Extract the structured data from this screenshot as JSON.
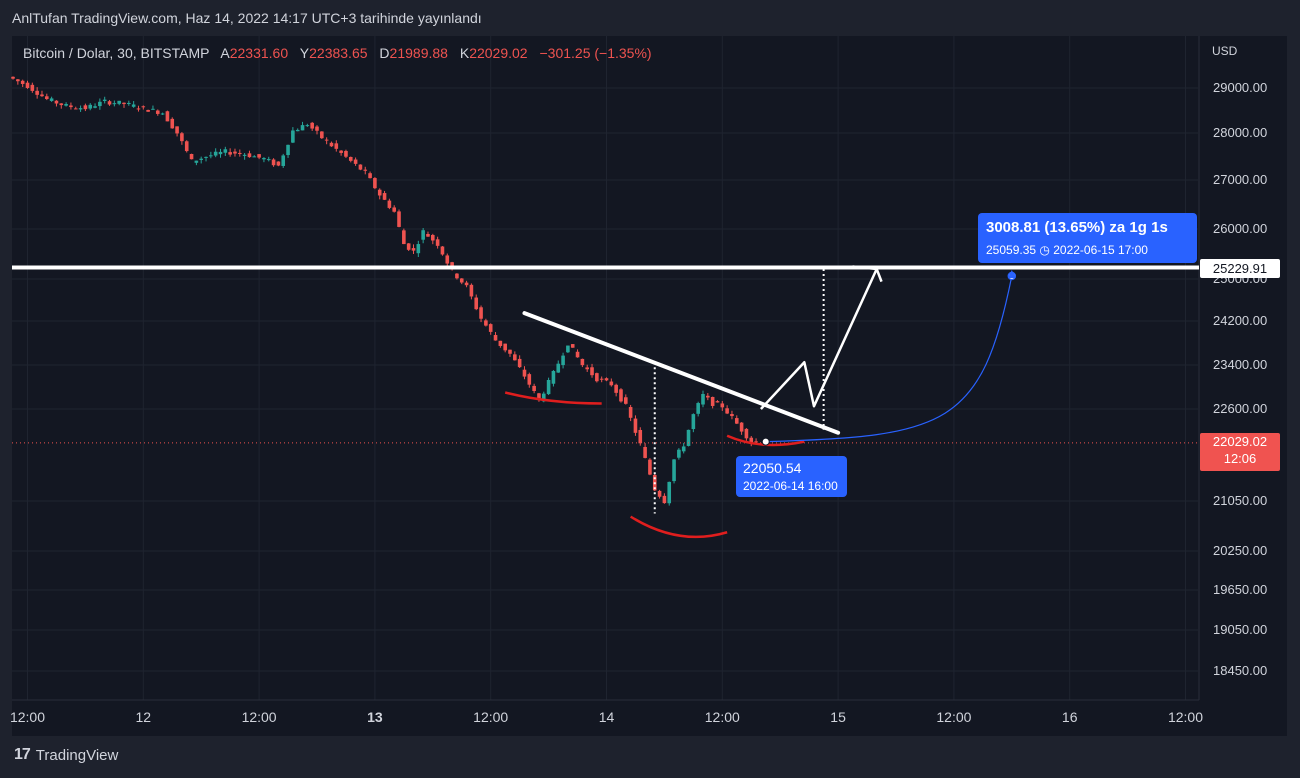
{
  "header": {
    "publish_line": "AnlTufan TradingView.com, Haz 14, 2022 14:17 UTC+3 tarihinde yayınlandı"
  },
  "legend": {
    "symbol": "Bitcoin / Dolar, 30, BITSTAMP",
    "open_key": "A",
    "open": "22331.60",
    "high_key": "Y",
    "high": "22383.65",
    "low_key": "D",
    "low": "21989.88",
    "close_key": "K",
    "close": "22029.02",
    "change": "−301.25 (−1.35%)"
  },
  "axis": {
    "currency": "USD"
  },
  "colors": {
    "up": "#26a69a",
    "down": "#ef5350",
    "bg": "#131722",
    "accent": "#2962ff",
    "annotation_red": "#e01e1e"
  },
  "chart_data": {
    "type": "candlestick",
    "ylim": [
      18150,
      29650
    ],
    "y_ticks": [
      "29000.00",
      "28000.00",
      "27000.00",
      "26000.00",
      "25000.00",
      "24200.00",
      "23400.00",
      "22600.00",
      "21050.00",
      "20250.00",
      "19650.00",
      "19050.00",
      "18450.00"
    ],
    "y_tick_values": [
      29000,
      28000,
      27000,
      26000,
      25000,
      24200,
      23400,
      22600,
      21050,
      20250,
      19650,
      19050,
      18450
    ],
    "x_ticks": [
      "12:00",
      "12",
      "12:00",
      "13",
      "12:00",
      "14",
      "12:00",
      "15",
      "12:00",
      "16",
      "12:00"
    ],
    "x_tick_hours": [
      12,
      24,
      36,
      48,
      60,
      72,
      84,
      96,
      108,
      120,
      132
    ],
    "x_bold": [
      false,
      false,
      false,
      true,
      false,
      false,
      false,
      false,
      false,
      false,
      false
    ],
    "price_path": [
      [
        10.5,
        29250
      ],
      [
        12.5,
        29050
      ],
      [
        14.5,
        28750
      ],
      [
        16.5,
        28600
      ],
      [
        18.5,
        28550
      ],
      [
        20.5,
        28700
      ],
      [
        22.5,
        28650
      ],
      [
        24.5,
        28550
      ],
      [
        26.5,
        28450
      ],
      [
        28,
        28000
      ],
      [
        29.5,
        27400
      ],
      [
        31,
        27500
      ],
      [
        33,
        27600
      ],
      [
        35,
        27550
      ],
      [
        37,
        27450
      ],
      [
        38.5,
        27300
      ],
      [
        40,
        28050
      ],
      [
        41.5,
        28200
      ],
      [
        43,
        27900
      ],
      [
        44.5,
        27650
      ],
      [
        46,
        27400
      ],
      [
        47.5,
        27150
      ],
      [
        49,
        26700
      ],
      [
        50.5,
        26350
      ],
      [
        51.5,
        25700
      ],
      [
        52.5,
        25550
      ],
      [
        53.5,
        25950
      ],
      [
        55,
        25700
      ],
      [
        56.5,
        25150
      ],
      [
        58,
        24850
      ],
      [
        59.5,
        24250
      ],
      [
        61,
        23850
      ],
      [
        62.5,
        23600
      ],
      [
        64,
        23200
      ],
      [
        65.5,
        22750
      ],
      [
        67,
        23250
      ],
      [
        68.5,
        23800
      ],
      [
        70,
        23400
      ],
      [
        71.5,
        23150
      ],
      [
        73,
        23050
      ],
      [
        74.5,
        22650
      ],
      [
        76,
        22000
      ],
      [
        77.5,
        21250
      ],
      [
        78.5,
        21050
      ],
      [
        79.5,
        21750
      ],
      [
        80.5,
        22000
      ],
      [
        81.5,
        22500
      ],
      [
        82.5,
        22850
      ],
      [
        83.5,
        22700
      ],
      [
        84.5,
        22650
      ],
      [
        85.5,
        22450
      ],
      [
        86.5,
        22250
      ],
      [
        87.5,
        22050
      ]
    ],
    "level_line": {
      "value": 25229.91,
      "label": "25229.91"
    },
    "last_price": {
      "value": 22029.02,
      "label": "22029.02",
      "countdown": "12:06"
    },
    "trendline": {
      "start": [
        63.5,
        24350
      ],
      "end": [
        96,
        22200
      ]
    },
    "projection": [
      [
        88,
        22600
      ],
      [
        92.5,
        23450
      ],
      [
        93.5,
        22650
      ],
      [
        100,
        25200
      ]
    ],
    "projection_arrowhead": [
      [
        97.5,
        25250
      ],
      [
        100,
        25200
      ],
      [
        100.5,
        24950
      ]
    ],
    "dotted_verticals": [
      {
        "hour": 77,
        "from": 23450,
        "to": 20850
      },
      {
        "hour": 94.5,
        "from": 25200,
        "to": 22250
      }
    ],
    "red_arcs": [
      [
        [
          61.5,
          22900
        ],
        [
          66,
          22700
        ],
        [
          71.5,
          22700
        ]
      ],
      [
        [
          74.5,
          20800
        ],
        [
          79.5,
          20320
        ],
        [
          84.5,
          20550
        ]
      ],
      [
        [
          84.5,
          22150
        ],
        [
          88,
          21900
        ],
        [
          92.5,
          22050
        ]
      ]
    ],
    "forecast": {
      "from": [
        88.5,
        22050.54
      ],
      "to": [
        114,
        25059.35
      ]
    },
    "callout_target": {
      "title": "3008.81 (13.65%) za 1g 1s",
      "detail": "25059.35",
      "time": "2022-06-15  17:00"
    },
    "callout_origin": {
      "value": "22050.54",
      "time": "2022-06-14 16:00"
    }
  },
  "footer": {
    "logo": "17",
    "brand": "TradingView"
  }
}
